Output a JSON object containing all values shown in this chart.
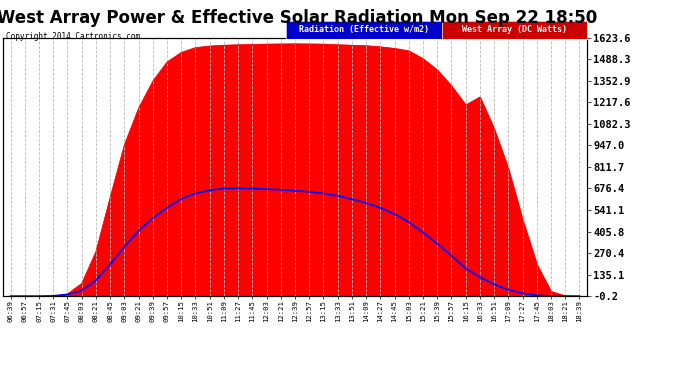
{
  "title": "West Array Power & Effective Solar Radiation Mon Sep 22 18:50",
  "copyright": "Copyright 2014 Cartronics.com",
  "legend_radiation": "Radiation (Effective w/m2)",
  "legend_west": "West Array (DC Watts)",
  "legend_radiation_bg": "#0000cc",
  "legend_west_bg": "#cc0000",
  "yticks": [
    -0.2,
    135.1,
    270.4,
    405.8,
    541.1,
    676.4,
    811.7,
    947.0,
    1082.3,
    1217.6,
    1352.9,
    1488.3,
    1623.6
  ],
  "ymin": -0.2,
  "ymax": 1623.6,
  "background_color": "#ffffff",
  "plot_bg": "#ffffff",
  "grid_color": "#bbbbbb",
  "red_color": "#ff0000",
  "blue_color": "#0000ff",
  "title_fontsize": 12,
  "xtick_labels": [
    "06:39",
    "06:57",
    "07:15",
    "07:31",
    "07:45",
    "08:03",
    "08:21",
    "08:45",
    "09:03",
    "09:21",
    "09:39",
    "09:57",
    "10:15",
    "10:33",
    "10:51",
    "11:09",
    "11:27",
    "11:45",
    "12:03",
    "12:21",
    "12:39",
    "12:57",
    "13:15",
    "13:33",
    "13:51",
    "14:09",
    "14:27",
    "14:45",
    "15:03",
    "15:21",
    "15:39",
    "15:57",
    "16:15",
    "16:33",
    "16:51",
    "17:09",
    "17:27",
    "17:45",
    "18:03",
    "18:21",
    "18:39"
  ],
  "west_array_values": [
    0,
    0,
    0,
    0,
    15,
    80,
    280,
    620,
    950,
    1180,
    1350,
    1470,
    1530,
    1560,
    1570,
    1575,
    1578,
    1580,
    1582,
    1583,
    1584,
    1583,
    1582,
    1578,
    1575,
    1572,
    1565,
    1555,
    1540,
    1490,
    1420,
    1320,
    1200,
    1250,
    1050,
    800,
    480,
    200,
    30,
    2,
    0
  ],
  "radiation_values": [
    0,
    0,
    0,
    2,
    10,
    35,
    100,
    200,
    310,
    410,
    490,
    555,
    610,
    645,
    665,
    676,
    678,
    676,
    672,
    668,
    662,
    655,
    645,
    630,
    610,
    585,
    555,
    515,
    465,
    400,
    330,
    255,
    175,
    120,
    75,
    40,
    18,
    6,
    1,
    0,
    0
  ]
}
